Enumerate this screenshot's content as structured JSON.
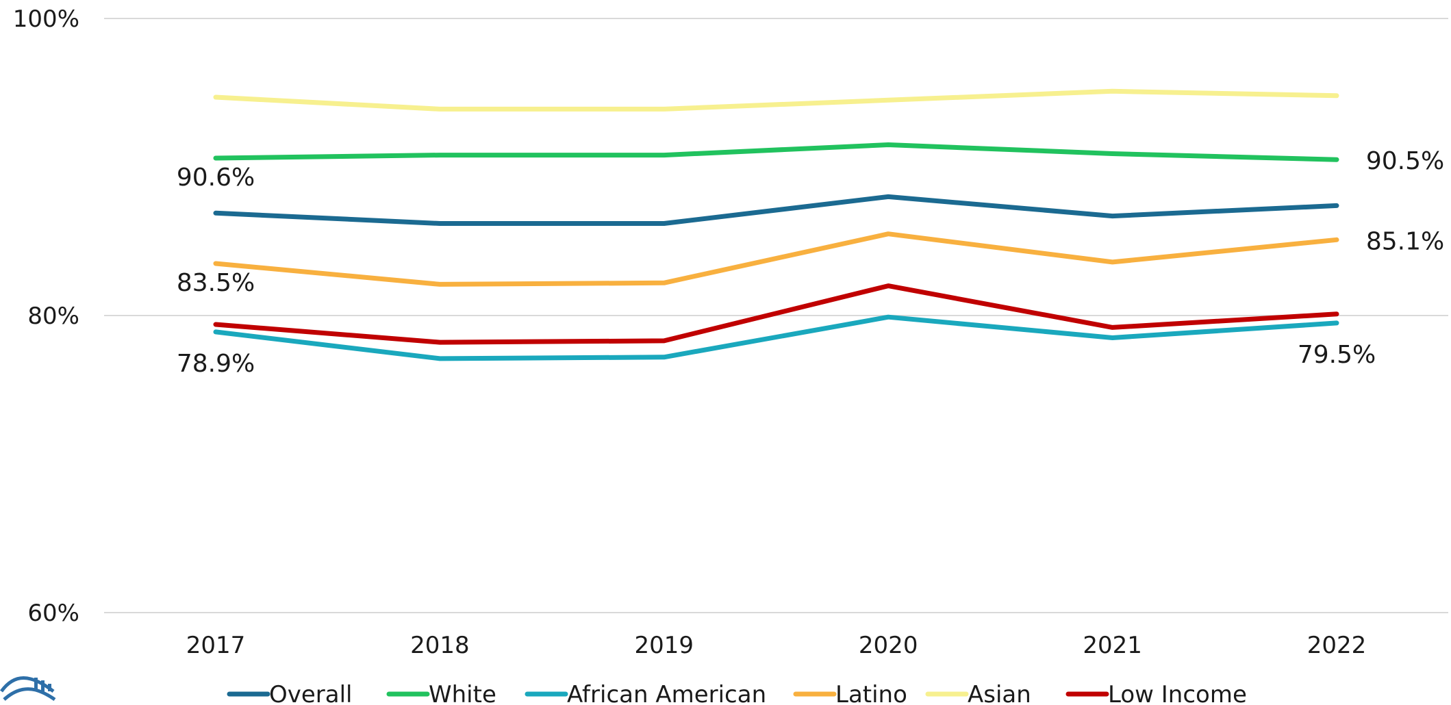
{
  "chart_data": {
    "type": "line",
    "title": "",
    "xlabel": "",
    "ylabel": "",
    "categories": [
      "2017",
      "2018",
      "2019",
      "2020",
      "2021",
      "2022"
    ],
    "ylim": [
      60,
      100
    ],
    "y_ticks": [
      60,
      80,
      100
    ],
    "y_tick_labels": [
      "60%",
      "80%",
      "100%"
    ],
    "grid": true,
    "legend_position": "bottom",
    "series": [
      {
        "name": "Overall",
        "color": "#1b6a91",
        "values": [
          86.9,
          86.2,
          86.2,
          88.0,
          86.7,
          87.4
        ]
      },
      {
        "name": "White",
        "color": "#21c25e",
        "values": [
          90.6,
          90.8,
          90.8,
          91.5,
          90.9,
          90.5
        ]
      },
      {
        "name": "African American",
        "color": "#1aa8bd",
        "values": [
          78.9,
          77.1,
          77.2,
          79.9,
          78.5,
          79.5
        ]
      },
      {
        "name": "Latino",
        "color": "#f8b03f",
        "values": [
          83.5,
          82.1,
          82.2,
          85.5,
          83.6,
          85.1
        ]
      },
      {
        "name": "Asian",
        "color": "#f7f08f",
        "values": [
          94.7,
          93.9,
          93.9,
          94.5,
          95.1,
          94.8
        ]
      },
      {
        "name": "Low Income",
        "color": "#c00000",
        "values": [
          79.4,
          78.2,
          78.3,
          82.0,
          79.2,
          80.1
        ]
      }
    ],
    "data_labels": [
      {
        "series": "White",
        "category": "2017",
        "text": "90.6%"
      },
      {
        "series": "White",
        "category": "2022",
        "text": "90.5%"
      },
      {
        "series": "Latino",
        "category": "2017",
        "text": "83.5%"
      },
      {
        "series": "Latino",
        "category": "2022",
        "text": "85.1%"
      },
      {
        "series": "African American",
        "category": "2017",
        "text": "78.9%"
      },
      {
        "series": "African American",
        "category": "2022",
        "text": "79.5%"
      }
    ]
  },
  "logo": {
    "icon": "organization-logo-icon",
    "color": "#2e6fa8"
  }
}
